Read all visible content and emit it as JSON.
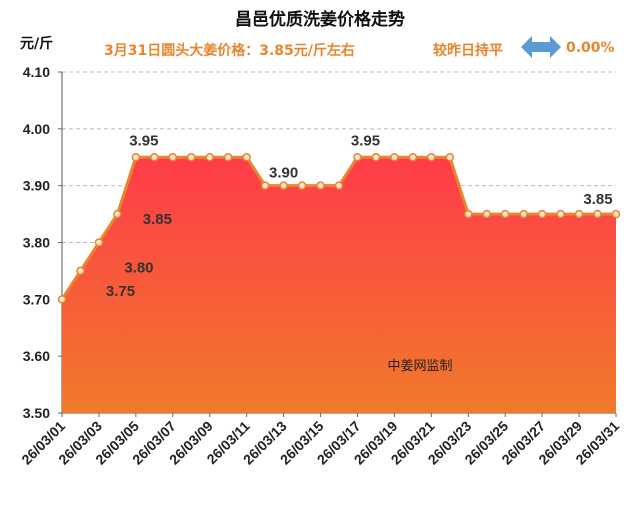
{
  "header": {
    "title": "昌邑优质洗姜价格走势",
    "unit": "元/斤",
    "price_note": "3月31日圆头大姜价格：3.85元/斤左右",
    "compare_label": "较昨日持平",
    "change_pct": "0.00%",
    "watermark": "中姜网监制"
  },
  "colors": {
    "line": "#e8852e",
    "fill_top": "#ff3b4a",
    "fill_bottom": "#f07a2a",
    "accent": "#e8852e",
    "arrow": "#5b9bd5"
  },
  "chart_data": {
    "type": "area",
    "title": "昌邑优质洗姜价格走势",
    "ylabel": "元/斤",
    "ylim": [
      3.5,
      4.1
    ],
    "yticks": [
      "3.50",
      "3.60",
      "3.70",
      "3.80",
      "3.90",
      "4.00",
      "4.10"
    ],
    "x": [
      "26/03/01",
      "26/03/02",
      "26/03/03",
      "26/03/04",
      "26/03/05",
      "26/03/06",
      "26/03/07",
      "26/03/08",
      "26/03/09",
      "26/03/10",
      "26/03/11",
      "26/03/12",
      "26/03/13",
      "26/03/14",
      "26/03/15",
      "26/03/16",
      "26/03/17",
      "26/03/18",
      "26/03/19",
      "26/03/20",
      "26/03/21",
      "26/03/22",
      "26/03/23",
      "26/03/24",
      "26/03/25",
      "26/03/26",
      "26/03/27",
      "26/03/28",
      "26/03/29",
      "26/03/30",
      "26/03/31"
    ],
    "xtick_labels": [
      "26/03/01",
      "26/03/03",
      "26/03/05",
      "26/03/07",
      "26/03/09",
      "26/03/11",
      "26/03/13",
      "26/03/15",
      "26/03/17",
      "26/03/19",
      "26/03/21",
      "26/03/23",
      "26/03/25",
      "26/03/27",
      "26/03/29",
      "26/03/31"
    ],
    "values": [
      3.7,
      3.75,
      3.8,
      3.85,
      3.95,
      3.95,
      3.95,
      3.95,
      3.95,
      3.95,
      3.95,
      3.9,
      3.9,
      3.9,
      3.9,
      3.9,
      3.95,
      3.95,
      3.95,
      3.95,
      3.95,
      3.95,
      3.85,
      3.85,
      3.85,
      3.85,
      3.85,
      3.85,
      3.85,
      3.85,
      3.85
    ],
    "data_labels": [
      {
        "index": 1,
        "text": "3.75"
      },
      {
        "index": 2,
        "text": "3.80"
      },
      {
        "index": 3,
        "text": "3.85"
      },
      {
        "index": 4,
        "text": "3.95"
      },
      {
        "index": 12,
        "text": "3.90"
      },
      {
        "index": 16,
        "text": "3.95"
      },
      {
        "index": 30,
        "text": "3.85"
      }
    ],
    "grid": true
  }
}
